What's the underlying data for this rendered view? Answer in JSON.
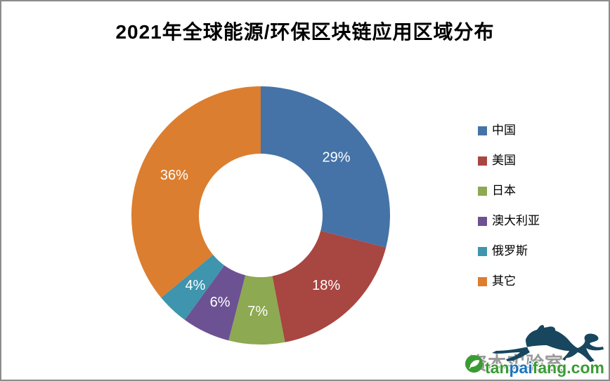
{
  "title": "2021年全球能源/环保区块链应用区域分布",
  "chart_data": {
    "type": "pie",
    "subtype": "donut",
    "title": "2021年全球能源/环保区块链应用区域分布",
    "categories": [
      "中国",
      "美国",
      "日本",
      "澳大利亚",
      "俄罗斯",
      "其它"
    ],
    "values": [
      29,
      18,
      7,
      6,
      4,
      36
    ],
    "data_labels": [
      "29%",
      "18%",
      "7%",
      "6%",
      "4%",
      "36%"
    ],
    "colors": [
      "#4573A7",
      "#A84641",
      "#8DA951",
      "#6C5293",
      "#3E95AD",
      "#DC7E2F"
    ],
    "label_color": "#FFFFFF",
    "start_angle_deg": 0,
    "direction": "clockwise",
    "donut_hole_ratio": 0.48,
    "legend_position": "right",
    "grid": false
  },
  "legend": {
    "items": [
      {
        "label": "中国",
        "color": "#4573A7"
      },
      {
        "label": "美国",
        "color": "#A84641"
      },
      {
        "label": "日本",
        "color": "#8DA951"
      },
      {
        "label": "澳大利亚",
        "color": "#6C5293"
      },
      {
        "label": "俄罗斯",
        "color": "#3E95AD"
      },
      {
        "label": "其它",
        "color": "#DC7E2F"
      }
    ]
  },
  "watermark": {
    "overlay_text": "资本实验室",
    "site_text_parts": [
      {
        "text": "tan",
        "color": "#3A9B33"
      },
      {
        "text": "pai",
        "color": "#1C74BA"
      },
      {
        "text": "fang.com",
        "color": "#3A9B33"
      }
    ],
    "leopard_icon": "leaping-leopard-silhouette",
    "leopard_color": "#17465E",
    "badge_icon": "green-carbon-leaf-badge",
    "badge_color": "#3A9B33"
  }
}
